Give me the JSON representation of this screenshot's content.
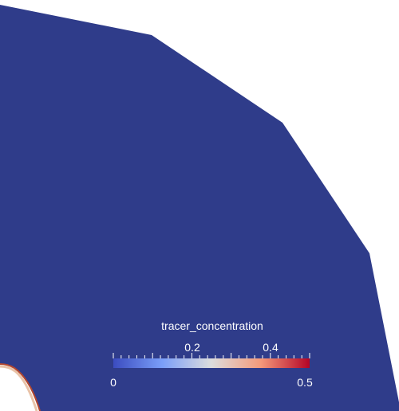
{
  "colors": {
    "background": "#ffffff",
    "field_fill": "#2f3c8a",
    "rim_outer": "#b3472f",
    "rim_inner": "#e9c3a8",
    "colormap_low": "#3b4cc0",
    "colormap_mid": "#dddddd",
    "colormap_high": "#b40426"
  },
  "colorbar": {
    "title": "tracer_concentration",
    "range": [
      0,
      0.5
    ],
    "min_label": "0",
    "max_label": "0.5",
    "tick_labels": [
      "0.2",
      "0.4"
    ],
    "colormap": "Cool to Warm"
  }
}
